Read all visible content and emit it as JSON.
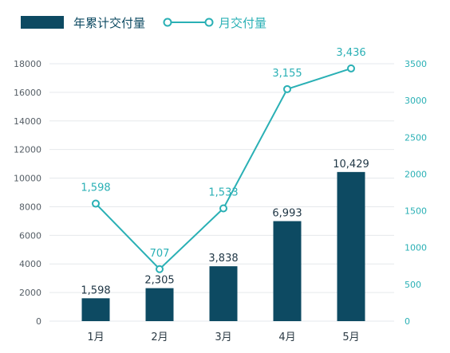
{
  "colors": {
    "bar": "#0d4a62",
    "line": "#2ab0b5",
    "grid": "#e6e9ec",
    "axis_text_left": "#555e66",
    "axis_text_right": "#2ab0b5"
  },
  "legend": {
    "bar_label": "年累计交付量",
    "line_label": "月交付量"
  },
  "chart_data": {
    "type": "bar",
    "categories": [
      "1月",
      "2月",
      "3月",
      "4月",
      "5月"
    ],
    "series": [
      {
        "name": "年累计交付量",
        "type": "bar",
        "axis": "left",
        "values": [
          1598,
          2305,
          3838,
          6993,
          10429
        ],
        "labels": [
          "1,598",
          "2,305",
          "3,838",
          "6,993",
          "10,429"
        ]
      },
      {
        "name": "月交付量",
        "type": "line",
        "axis": "right",
        "values": [
          1598,
          707,
          1533,
          3155,
          3436
        ],
        "labels": [
          "1,598",
          "707",
          "1,533",
          "3,155",
          "3,436"
        ]
      }
    ],
    "y_left": {
      "min": 0,
      "max": 18000,
      "ticks": [
        "0",
        "2000",
        "4000",
        "6000",
        "8000",
        "10000",
        "12000",
        "14000",
        "16000",
        "18000"
      ]
    },
    "y_right": {
      "min": 0,
      "max": 3500,
      "ticks": [
        "0",
        "500",
        "1000",
        "1500",
        "2000",
        "2500",
        "3000",
        "3500"
      ]
    },
    "grid": true,
    "legend_position": "top-left"
  }
}
